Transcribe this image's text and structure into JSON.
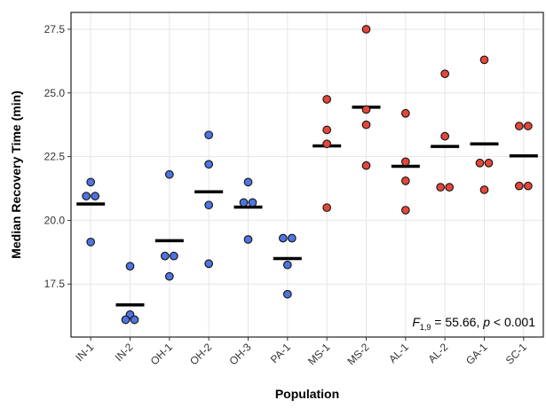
{
  "chart_data": {
    "type": "dot",
    "x_label": "Population",
    "y_label": "Median Recovery Time (min)",
    "categories": [
      "IN-1",
      "IN-2",
      "OH-1",
      "OH-2",
      "OH-3",
      "PA-1",
      "MS-1",
      "MS-2",
      "AL-1",
      "AL-2",
      "GA-1",
      "SC-1"
    ],
    "colors": [
      "#4f74e0",
      "#4f74e0",
      "#4f74e0",
      "#4f74e0",
      "#4f74e0",
      "#4f74e0",
      "#e4463b",
      "#e4463b",
      "#e4463b",
      "#e4463b",
      "#e4463b",
      "#e4463b"
    ],
    "points": [
      [
        21.5,
        20.95,
        20.95,
        19.15
      ],
      [
        18.2,
        16.3,
        16.1,
        16.1
      ],
      [
        21.8,
        18.6,
        18.6,
        17.8
      ],
      [
        23.35,
        22.2,
        20.6,
        18.3
      ],
      [
        21.5,
        20.7,
        20.7,
        19.25
      ],
      [
        19.3,
        19.3,
        18.25,
        17.1
      ],
      [
        24.75,
        23.55,
        23.0,
        20.5
      ],
      [
        27.5,
        24.35,
        23.75,
        22.15
      ],
      [
        24.2,
        22.3,
        21.55,
        20.4
      ],
      [
        25.75,
        23.3,
        21.3,
        21.3
      ],
      [
        26.3,
        22.25,
        22.25,
        21.2
      ],
      [
        23.7,
        23.7,
        21.35,
        21.35
      ]
    ],
    "means": [
      20.64,
      16.68,
      19.2,
      21.12,
      20.52,
      18.5,
      22.92,
      24.44,
      22.12,
      22.9,
      23.0,
      22.53
    ],
    "ylim": [
      15.42,
      28.16
    ],
    "yticks": [
      17.5,
      {
        "value": 20,
        "label": "20.0"
      },
      22.5,
      {
        "value": 25,
        "label": "25.0"
      },
      27.5
    ],
    "grid": true,
    "annotation": {
      "F": "F",
      "df": "1,9",
      "mid": " = 55.66, ",
      "p": "p",
      "end": " < 0.001"
    }
  }
}
